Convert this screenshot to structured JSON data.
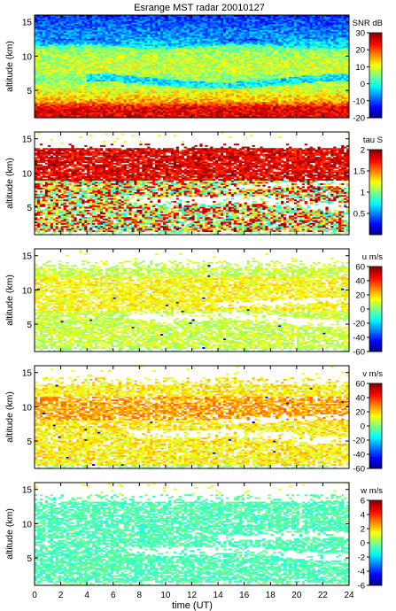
{
  "title": "Esrange MST radar 20010127",
  "chart_data": {
    "type": "heatmap",
    "title": "Esrange MST radar 20010127",
    "xlabel": "time (UT)",
    "xlim": [
      0,
      24
    ],
    "xticks": [
      0,
      2,
      4,
      6,
      8,
      10,
      12,
      14,
      16,
      18,
      20,
      22,
      24
    ],
    "ylabel": "altitude (km)",
    "ylim": [
      1,
      16
    ],
    "yticks": [
      5,
      10,
      15
    ],
    "colormap": "jet",
    "panels": [
      {
        "id": "snr",
        "colorbar_label": "SNR dB",
        "clim": [
          -20,
          30
        ],
        "cticks": [
          -20,
          -10,
          0,
          10,
          20,
          30
        ],
        "description": "SNR high (red) below ~3 km, moderate 3-12 km, low (blue) above 12 km; fully filled",
        "profile": [
          [
            1,
            25
          ],
          [
            2.5,
            25
          ],
          [
            3.5,
            15
          ],
          [
            5,
            10
          ],
          [
            6.5,
            5
          ],
          [
            8,
            9
          ],
          [
            9.5,
            8
          ],
          [
            11,
            6
          ],
          [
            12.5,
            -6
          ],
          [
            14,
            -8
          ],
          [
            16,
            -12
          ]
        ]
      },
      {
        "id": "tau",
        "colorbar_label": "tau S",
        "clim": [
          0,
          2
        ],
        "cticks": [
          0.5,
          1,
          1.5,
          2
        ],
        "description": "Correlation time: large (dark red) 9-13 km, mixed 2-8 km, sparse elsewhere",
        "coverage": [
          [
            1.5,
            8.5
          ],
          [
            9,
            13.5
          ]
        ]
      },
      {
        "id": "u",
        "colorbar_label": "u m/s",
        "clim": [
          -60,
          60
        ],
        "cticks": [
          -60,
          -40,
          -20,
          0,
          20,
          40,
          60
        ],
        "description": "Zonal wind mostly 0 to 20 m/s with weak positive values 8-12 km"
      },
      {
        "id": "v",
        "colorbar_label": "v m/s",
        "clim": [
          -60,
          60
        ],
        "cticks": [
          -60,
          -40,
          -20,
          0,
          20,
          40,
          60
        ],
        "description": "Meridional wind mostly 5 to 25 m/s, highest near 9-11 km"
      },
      {
        "id": "w",
        "colorbar_label": "w m/s",
        "clim": [
          -6,
          6
        ],
        "cticks": [
          -6,
          -4,
          -2,
          0,
          2,
          4,
          6
        ],
        "description": "Vertical wind near 0 m/s everywhere"
      }
    ]
  }
}
